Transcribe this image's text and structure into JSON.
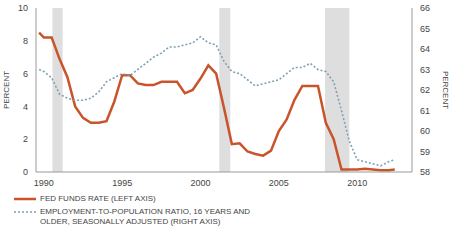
{
  "chart_data": {
    "type": "line",
    "x": [
      1989.7,
      1990,
      1990.5,
      1991,
      1991.5,
      1992,
      1992.5,
      1993,
      1993.5,
      1994,
      1994.5,
      1995,
      1995.5,
      1996,
      1996.5,
      1997,
      1997.5,
      1998,
      1998.5,
      1999,
      1999.5,
      2000,
      2000.5,
      2001,
      2001.5,
      2002,
      2002.5,
      2003,
      2003.5,
      2004,
      2004.5,
      2005,
      2005.5,
      2006,
      2006.5,
      2007,
      2007.5,
      2008,
      2008.5,
      2009,
      2009.5,
      2010,
      2010.5,
      2011,
      2011.5,
      2012,
      2012.4
    ],
    "xlim": [
      1989.5,
      2013.5
    ],
    "xticks": [
      1990,
      1995,
      2000,
      2005,
      2010
    ],
    "ylim": [
      0,
      10
    ],
    "yticks": [
      0,
      2,
      4,
      6,
      8,
      10
    ],
    "y2lim": [
      58,
      66
    ],
    "y2ticks": [
      58,
      59,
      60,
      61,
      62,
      63,
      64,
      65,
      66
    ],
    "y_label": "PERCENT",
    "y2_label": "PERCENT",
    "shaded_periods": [
      [
        1990.55,
        1991.2
      ],
      [
        2001.2,
        2001.9
      ],
      [
        2007.95,
        2009.5
      ]
    ],
    "series": [
      {
        "name": "FED FUNDS RATE (LEFT AXIS)",
        "color": "#c9542b",
        "line_style": "solid",
        "axis": "y",
        "values": [
          8.5,
          8.2,
          8.2,
          6.9,
          5.8,
          4.0,
          3.3,
          3.0,
          3.0,
          3.1,
          4.3,
          5.9,
          5.9,
          5.4,
          5.3,
          5.3,
          5.5,
          5.5,
          5.5,
          4.8,
          5.0,
          5.7,
          6.5,
          6.0,
          3.9,
          1.7,
          1.75,
          1.25,
          1.1,
          1.0,
          1.3,
          2.5,
          3.2,
          4.4,
          5.25,
          5.25,
          5.25,
          3.0,
          2.0,
          0.15,
          0.15,
          0.15,
          0.2,
          0.15,
          0.1,
          0.1,
          0.15
        ]
      },
      {
        "name": "EMPLOYMENT-TO-POPULATION RATIO, 16 YEARS AND OLDER, SEASONALLY ADJUSTED (RIGHT AXIS)",
        "color": "#7f9fb3",
        "line_style": "dotted",
        "axis": "y2",
        "values": [
          63.0,
          62.9,
          62.6,
          61.8,
          61.6,
          61.5,
          61.5,
          61.6,
          61.9,
          62.4,
          62.6,
          62.8,
          62.7,
          63.0,
          63.3,
          63.6,
          63.8,
          64.1,
          64.1,
          64.2,
          64.3,
          64.6,
          64.3,
          64.2,
          63.4,
          62.9,
          62.8,
          62.5,
          62.2,
          62.3,
          62.4,
          62.5,
          62.8,
          63.1,
          63.1,
          63.3,
          63.0,
          62.9,
          62.4,
          61.0,
          59.5,
          58.6,
          58.5,
          58.4,
          58.3,
          58.5,
          58.6
        ]
      }
    ]
  }
}
